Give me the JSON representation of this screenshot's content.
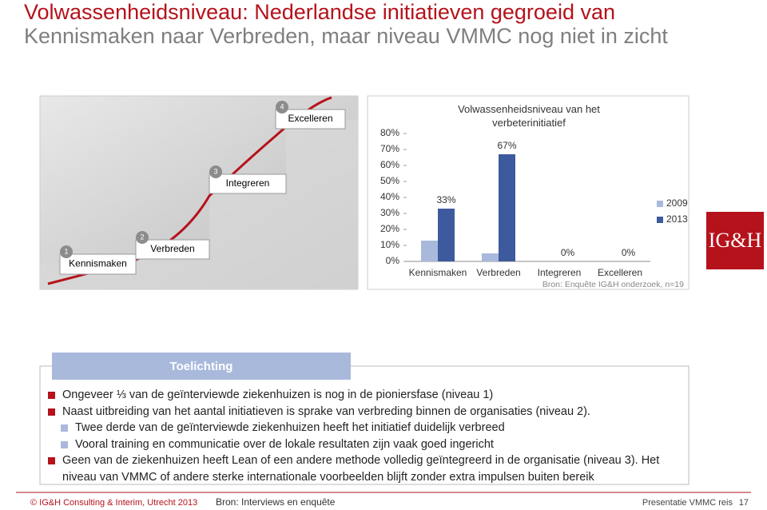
{
  "header": {
    "title_red": "Volwassenheidsniveau: Nederlandse initiatieven gegroeid van",
    "title_gray": "Kennismaken naar Verbreden, maar niveau VMMC nog niet in zicht"
  },
  "steps": [
    {
      "number": "1",
      "label": "Kennismaken"
    },
    {
      "number": "2",
      "label": "Verbreden"
    },
    {
      "number": "3",
      "label": "Integreren"
    },
    {
      "number": "4",
      "label": "Excelleren"
    }
  ],
  "logo": "IG&H",
  "chart_data": {
    "type": "bar",
    "title": "Volwassenheidsniveau van het verbeterinitiatief",
    "source": "Bron: Enquête IG&H onderzoek, n=19",
    "categories": [
      "Kennismaken",
      "Verbreden",
      "Integreren",
      "Excelleren"
    ],
    "series": [
      {
        "name": "2009",
        "color": "#a9b9dc",
        "values": [
          13,
          5,
          0,
          0
        ]
      },
      {
        "name": "2013",
        "color": "#3d5a9e",
        "values": [
          33,
          67,
          0,
          0
        ],
        "value_labels": [
          "33%",
          "67%",
          "0%",
          "0%"
        ]
      }
    ],
    "ylim": [
      0,
      80
    ],
    "yticks": [
      {
        "value": 0,
        "label": "0%"
      },
      {
        "value": 10,
        "label": "10%"
      },
      {
        "value": 20,
        "label": "20%"
      },
      {
        "value": 30,
        "label": "30%"
      },
      {
        "value": 40,
        "label": "40%"
      },
      {
        "value": 50,
        "label": "50%"
      },
      {
        "value": 60,
        "label": "60%"
      },
      {
        "value": 70,
        "label": "70%"
      },
      {
        "value": 80,
        "label": "80%"
      }
    ],
    "legend": "right",
    "grid": false
  },
  "notes": {
    "heading": "Toelichting",
    "items": [
      {
        "text": "Ongeveer ⅓ van de geïnterviewde ziekenhuizen is nog in de pioniersfase (niveau 1)"
      },
      {
        "text": "Naast uitbreiding van het aantal initiatieven is sprake van verbreding binnen de organisaties (niveau 2).",
        "sub": [
          "Twee derde van de geïnterviewde ziekenhuizen heeft het initiatief duidelijk verbreed",
          "Vooral training en communicatie over de lokale resultaten zijn vaak goed ingericht"
        ]
      },
      {
        "text": "Geen van de ziekenhuizen heeft Lean of een andere methode volledig geïntegreerd in de organisatie (niveau 3). Het niveau van VMMC of andere sterke internationale voorbeelden blijft zonder extra impulsen buiten bereik"
      }
    ]
  },
  "footer": {
    "copyright": "© IG&H Consulting & Interim, Utrecht 2013",
    "source": "Bron: Interviews en enquête",
    "presentation": "Presentatie VMMC reis",
    "page": "17"
  }
}
